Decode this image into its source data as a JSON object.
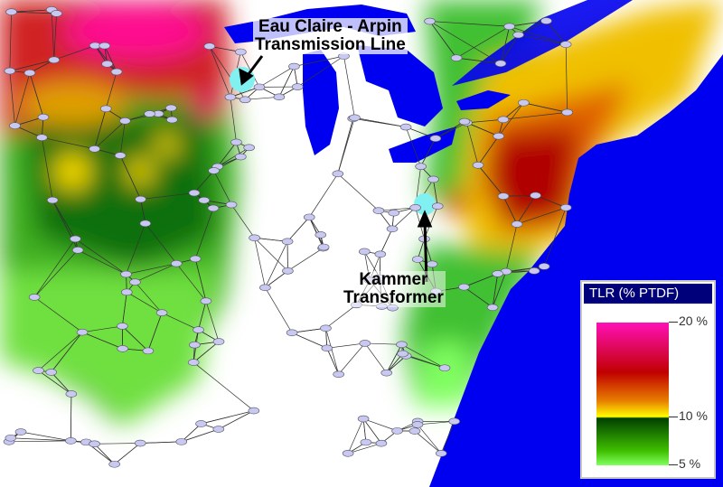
{
  "annotations": {
    "eau_claire_line1": "Eau Claire - Arpin",
    "eau_claire_line2": "Transmission Line",
    "kammer_line1": "Kammer",
    "kammer_line2": "Transformer"
  },
  "legend": {
    "title": "TLR (% PTDF)",
    "ticks": [
      "20 %",
      "10 %",
      "5  %"
    ],
    "colors": {
      "high": "#ff10b8",
      "mid_high": "#c00000",
      "mid": "#ffff00",
      "low_dark": "#004000",
      "low": "#80ff60"
    }
  },
  "map_colors": {
    "water": "#0000f0",
    "highlight": "#80f0f0",
    "node": "#c8c8f0"
  }
}
